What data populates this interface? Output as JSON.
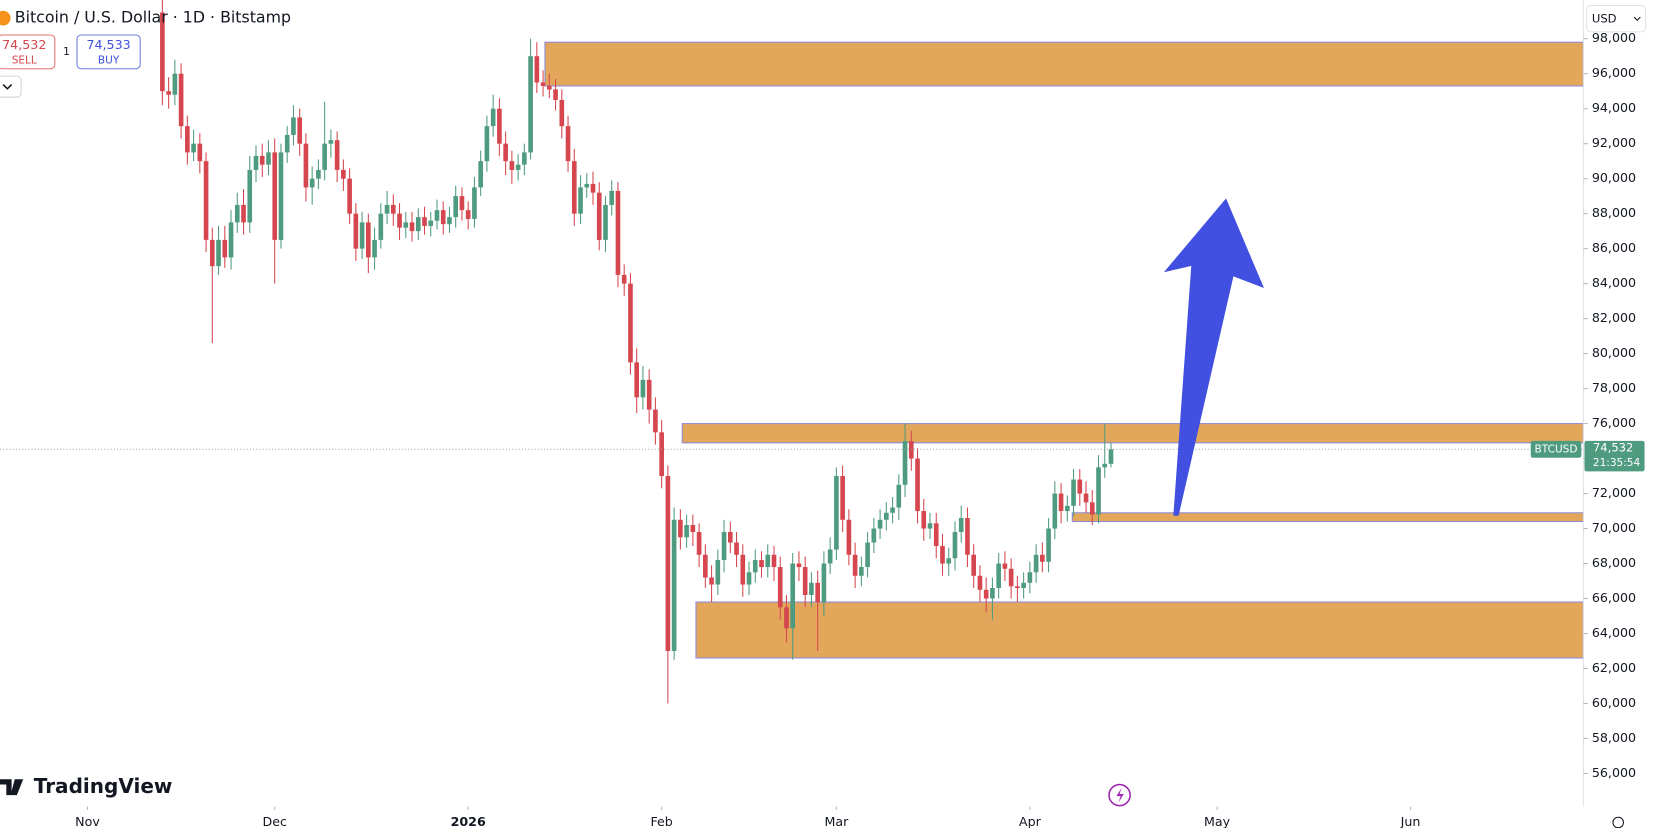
{
  "header": {
    "title": "Bitcoin / U.S. Dollar · 1D · Bitstamp",
    "sell_price": "74,532",
    "sell": "SELL",
    "quantity": "1",
    "buy_price": "74,533",
    "buy": "BUY",
    "currency": "USD"
  },
  "brand": "TradingView",
  "chart_data": {
    "type": "candlestick",
    "up_color": "#4f9b7f",
    "down_color": "#d5464e",
    "grid": false,
    "xlim": [
      -14.02,
      239.7
    ],
    "xticks": [
      {
        "value": 0,
        "label": "Nov"
      },
      {
        "value": 30,
        "label": "Dec"
      },
      {
        "value": 61,
        "label": "2026"
      },
      {
        "value": 92,
        "label": "Feb"
      },
      {
        "value": 120,
        "label": "Mar"
      },
      {
        "value": 151,
        "label": "Apr"
      },
      {
        "value": 181,
        "label": "May"
      },
      {
        "value": 212,
        "label": "Jun"
      }
    ],
    "ylim": [
      54100,
      100200
    ],
    "yticks": [
      {
        "value": 98000,
        "label": "98,000"
      },
      {
        "value": 96000,
        "label": "96,000"
      },
      {
        "value": 94000,
        "label": "94,000"
      },
      {
        "value": 92000,
        "label": "92,000"
      },
      {
        "value": 90000,
        "label": "90,000"
      },
      {
        "value": 88000,
        "label": "88,000"
      },
      {
        "value": 86000,
        "label": "86,000"
      },
      {
        "value": 84000,
        "label": "84,000"
      },
      {
        "value": 82000,
        "label": "82,000"
      },
      {
        "value": 80000,
        "label": "80,000"
      },
      {
        "value": 78000,
        "label": "78,000"
      },
      {
        "value": 76000,
        "label": "76,000"
      },
      {
        "value": 74000,
        "label": "74,000"
      },
      {
        "value": 72000,
        "label": "72,000"
      },
      {
        "value": 70000,
        "label": "70,000"
      },
      {
        "value": 68000,
        "label": "68,000"
      },
      {
        "value": 66000,
        "label": "66,000"
      },
      {
        "value": 64000,
        "label": "64,000"
      },
      {
        "value": 62000,
        "label": "62,000"
      },
      {
        "value": 60000,
        "label": "60,000"
      },
      {
        "value": 58000,
        "label": "58,000"
      },
      {
        "value": 56000,
        "label": "56,000"
      }
    ],
    "x": [
      12,
      13,
      14,
      15,
      16,
      17,
      18,
      19,
      20,
      21,
      22,
      23,
      24,
      25,
      26,
      27,
      28,
      29,
      30,
      31,
      32,
      33,
      34,
      35,
      36,
      37,
      38,
      39,
      40,
      41,
      42,
      43,
      44,
      45,
      46,
      47,
      48,
      49,
      50,
      51,
      52,
      53,
      54,
      55,
      56,
      57,
      58,
      59,
      60,
      61,
      62,
      63,
      64,
      65,
      66,
      67,
      68,
      69,
      70,
      71,
      72,
      73,
      74,
      75,
      76,
      77,
      78,
      79,
      80,
      81,
      82,
      83,
      84,
      85,
      86,
      87,
      88,
      89,
      90,
      91,
      92,
      93,
      94,
      95,
      96,
      97,
      98,
      99,
      100,
      101,
      102,
      103,
      104,
      105,
      106,
      107,
      108,
      109,
      110,
      111,
      112,
      113,
      114,
      115,
      116,
      117,
      118,
      119,
      120,
      121,
      122,
      123,
      124,
      125,
      126,
      127,
      128,
      129,
      130,
      131,
      132,
      133,
      134,
      135,
      136,
      137,
      138,
      139,
      140,
      141,
      142,
      143,
      144,
      145,
      146,
      147,
      148,
      149,
      150,
      151,
      152,
      153,
      154,
      155,
      156,
      157,
      158,
      159,
      160,
      161,
      162,
      163,
      164
    ],
    "open": [
      99500,
      95000,
      94800,
      96000,
      93000,
      91500,
      92000,
      91000,
      86500,
      85000,
      86500,
      85500,
      87500,
      88500,
      87500,
      90500,
      91300,
      90800,
      91500,
      86500,
      91500,
      92500,
      93500,
      92000,
      89500,
      90000,
      90500,
      92000,
      92200,
      90500,
      90000,
      88000,
      86000,
      87500,
      85500,
      86500,
      88000,
      88500,
      88000,
      87200,
      87500,
      87000,
      87800,
      87300,
      87600,
      88200,
      87400,
      87800,
      89000,
      88200,
      87700,
      89500,
      91000,
      93000,
      94000,
      92000,
      91000,
      90500,
      90800,
      91500,
      97000,
      95500,
      95300,
      95100,
      94500,
      93000,
      91000,
      88000,
      89500,
      89700,
      89200,
      86500,
      88500,
      89300,
      84500,
      84000,
      79500,
      77500,
      78500,
      76800,
      75500,
      73000,
      63000,
      70500,
      69500,
      70200,
      69800,
      68500,
      67200,
      66800,
      68200,
      69800,
      69200,
      68500,
      66800,
      67500,
      68200,
      67800,
      68500,
      67800,
      65500,
      64300,
      68000,
      67800,
      66200,
      66900,
      65800,
      68000,
      68800,
      73000,
      70500,
      68500,
      67300,
      67800,
      69200,
      70000,
      70500,
      70900,
      71200,
      72500,
      75000,
      74000,
      71000,
      70000,
      70300,
      69000,
      68000,
      68300,
      69800,
      70600,
      68500,
      67300,
      66500,
      66000,
      66600,
      68000,
      67700,
      66700,
      66600,
      66900,
      67500,
      68500,
      68100,
      70000,
      72000,
      71000,
      71300,
      72800,
      72000,
      71500,
      70800,
      73500,
      73700
    ],
    "high": [
      100500,
      95800,
      96800,
      96600,
      93600,
      92800,
      92600,
      91500,
      87200,
      87300,
      87300,
      88200,
      89200,
      89400,
      91300,
      91900,
      92000,
      92200,
      92300,
      92000,
      93000,
      94200,
      94000,
      92600,
      90700,
      91100,
      94400,
      92800,
      92700,
      91100,
      90600,
      88600,
      88100,
      88000,
      87200,
      88600,
      89300,
      89100,
      88600,
      88100,
      88100,
      88300,
      88400,
      88100,
      88800,
      88700,
      88400,
      89600,
      89500,
      88700,
      90100,
      91600,
      93600,
      94800,
      94600,
      92700,
      91600,
      91400,
      92000,
      98000,
      97800,
      96200,
      96000,
      95700,
      95100,
      93600,
      91700,
      90200,
      90300,
      90400,
      89800,
      89000,
      89900,
      89800,
      85100,
      84600,
      80300,
      79300,
      79100,
      77500,
      76200,
      73600,
      71200,
      71100,
      70800,
      70800,
      70300,
      69100,
      67900,
      68800,
      70500,
      70400,
      69800,
      69100,
      68100,
      68800,
      68700,
      69100,
      69000,
      68400,
      66200,
      68600,
      68700,
      68400,
      67500,
      67600,
      68700,
      69500,
      73500,
      73600,
      71100,
      69200,
      68400,
      69800,
      70600,
      71100,
      71500,
      71800,
      73100,
      76000,
      75600,
      74600,
      71700,
      70900,
      70900,
      69700,
      68900,
      70400,
      71300,
      71200,
      69100,
      67900,
      67200,
      67200,
      68600,
      68700,
      68300,
      67300,
      67500,
      68100,
      69100,
      69200,
      70600,
      72700,
      72600,
      71900,
      73400,
      73400,
      72700,
      72200,
      74200,
      76000,
      74900
    ],
    "low": [
      94200,
      94000,
      94200,
      92300,
      90800,
      91000,
      90300,
      85800,
      80600,
      84500,
      84900,
      84800,
      86900,
      86800,
      86900,
      89800,
      90100,
      90200,
      84000,
      86000,
      90900,
      91900,
      91300,
      88700,
      88500,
      89400,
      89900,
      91200,
      89800,
      89300,
      87400,
      85300,
      85400,
      84600,
      84800,
      86000,
      87400,
      87300,
      86500,
      86600,
      86400,
      86500,
      86800,
      86700,
      87100,
      86800,
      86900,
      87200,
      87600,
      87100,
      87200,
      89000,
      90400,
      92400,
      91300,
      90200,
      89700,
      89900,
      90200,
      91100,
      94900,
      94700,
      94600,
      93900,
      92300,
      90400,
      87300,
      87400,
      88900,
      88500,
      85900,
      85800,
      87900,
      83800,
      83300,
      78800,
      76600,
      76800,
      76000,
      74800,
      72300,
      60000,
      62500,
      68800,
      68900,
      69000,
      67800,
      66600,
      65800,
      66200,
      67500,
      68600,
      67800,
      66100,
      66200,
      66900,
      67200,
      67200,
      67000,
      64800,
      63500,
      62500,
      67000,
      65500,
      65500,
      63000,
      65000,
      67400,
      68200,
      69800,
      67900,
      66600,
      66700,
      67200,
      68600,
      69400,
      69900,
      70300,
      70500,
      71800,
      73300,
      70300,
      69300,
      69400,
      68300,
      67300,
      67300,
      67600,
      69200,
      67800,
      66600,
      65800,
      65200,
      64800,
      66000,
      67000,
      66000,
      65800,
      66000,
      66300,
      66900,
      67500,
      67500,
      69400,
      70300,
      70400,
      70700,
      71300,
      70900,
      70200,
      70300,
      72900,
      73500
    ],
    "close": [
      95000,
      94800,
      96000,
      93000,
      91500,
      92000,
      91000,
      86500,
      85000,
      86500,
      85500,
      87500,
      88500,
      87500,
      90500,
      91300,
      90800,
      91500,
      86500,
      91500,
      92500,
      93500,
      92000,
      89500,
      90000,
      90500,
      92000,
      92200,
      90500,
      90000,
      88000,
      86000,
      87500,
      85500,
      86500,
      88000,
      88500,
      88000,
      87200,
      87500,
      87000,
      87800,
      87300,
      87600,
      88200,
      87400,
      87800,
      89000,
      88200,
      87700,
      89500,
      91000,
      93000,
      94000,
      92000,
      91000,
      90500,
      90800,
      91500,
      97000,
      95500,
      95300,
      95100,
      94500,
      93000,
      91000,
      88000,
      89500,
      89700,
      89200,
      86500,
      88500,
      89300,
      84500,
      84000,
      79500,
      77500,
      78500,
      76800,
      75500,
      73000,
      63000,
      70500,
      69500,
      70200,
      69800,
      68500,
      67200,
      66800,
      68200,
      69800,
      69200,
      68500,
      66800,
      67500,
      68200,
      67800,
      68500,
      67800,
      65500,
      64300,
      68000,
      67800,
      66200,
      66900,
      65800,
      68000,
      68800,
      73000,
      70500,
      68500,
      67300,
      67800,
      69200,
      70000,
      70500,
      70900,
      71200,
      72500,
      75000,
      74000,
      71000,
      70000,
      70300,
      69000,
      68000,
      68300,
      69800,
      70600,
      68500,
      67300,
      66500,
      66000,
      66600,
      68000,
      67700,
      66700,
      66600,
      66900,
      67500,
      68500,
      68100,
      70000,
      72000,
      71000,
      71300,
      72800,
      72000,
      71500,
      70800,
      73500,
      73700,
      74532
    ],
    "zones": [
      {
        "low": 95300,
        "high": 97800,
        "start": 73.3
      },
      {
        "low": 74900,
        "high": 76000,
        "start": 95.3
      },
      {
        "low": 70400,
        "high": 70900,
        "start": 157.8
      },
      {
        "low": 62600,
        "high": 65800,
        "start": 97.5
      }
    ],
    "zone_color": "#e3a75c",
    "last_label": {
      "symbol": "BTCUSD",
      "price": "74,532",
      "countdown": "21:35:54"
    }
  }
}
